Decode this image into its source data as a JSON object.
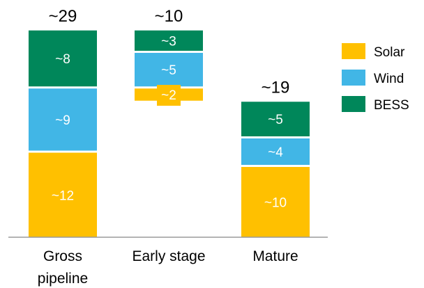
{
  "chart_data": {
    "type": "bar",
    "stacked": true,
    "title": "",
    "xlabel": "",
    "ylabel": "",
    "legend_position": "right",
    "grid": false,
    "categories": [
      "Gross pipeline",
      "Early stage",
      "Mature"
    ],
    "category_lines": [
      [
        "Gross",
        "pipeline"
      ],
      [
        "Early stage"
      ],
      [
        "Mature"
      ]
    ],
    "totals": [
      "~29",
      "~10",
      "~19"
    ],
    "series": [
      {
        "name": "Solar",
        "color": "#FFC000",
        "values": [
          12,
          2,
          10
        ],
        "labels": [
          "~12",
          "~2",
          "~10"
        ]
      },
      {
        "name": "Wind",
        "color": "#41B6E6",
        "values": [
          9,
          5,
          4
        ],
        "labels": [
          "~9",
          "~5",
          "~4"
        ]
      },
      {
        "name": "BESS",
        "color": "#00875A",
        "values": [
          8,
          3,
          5
        ],
        "labels": [
          "~8",
          "~3",
          "~5"
        ]
      }
    ],
    "early_stage_floating_base": 19,
    "ylim": [
      0,
      29
    ]
  }
}
